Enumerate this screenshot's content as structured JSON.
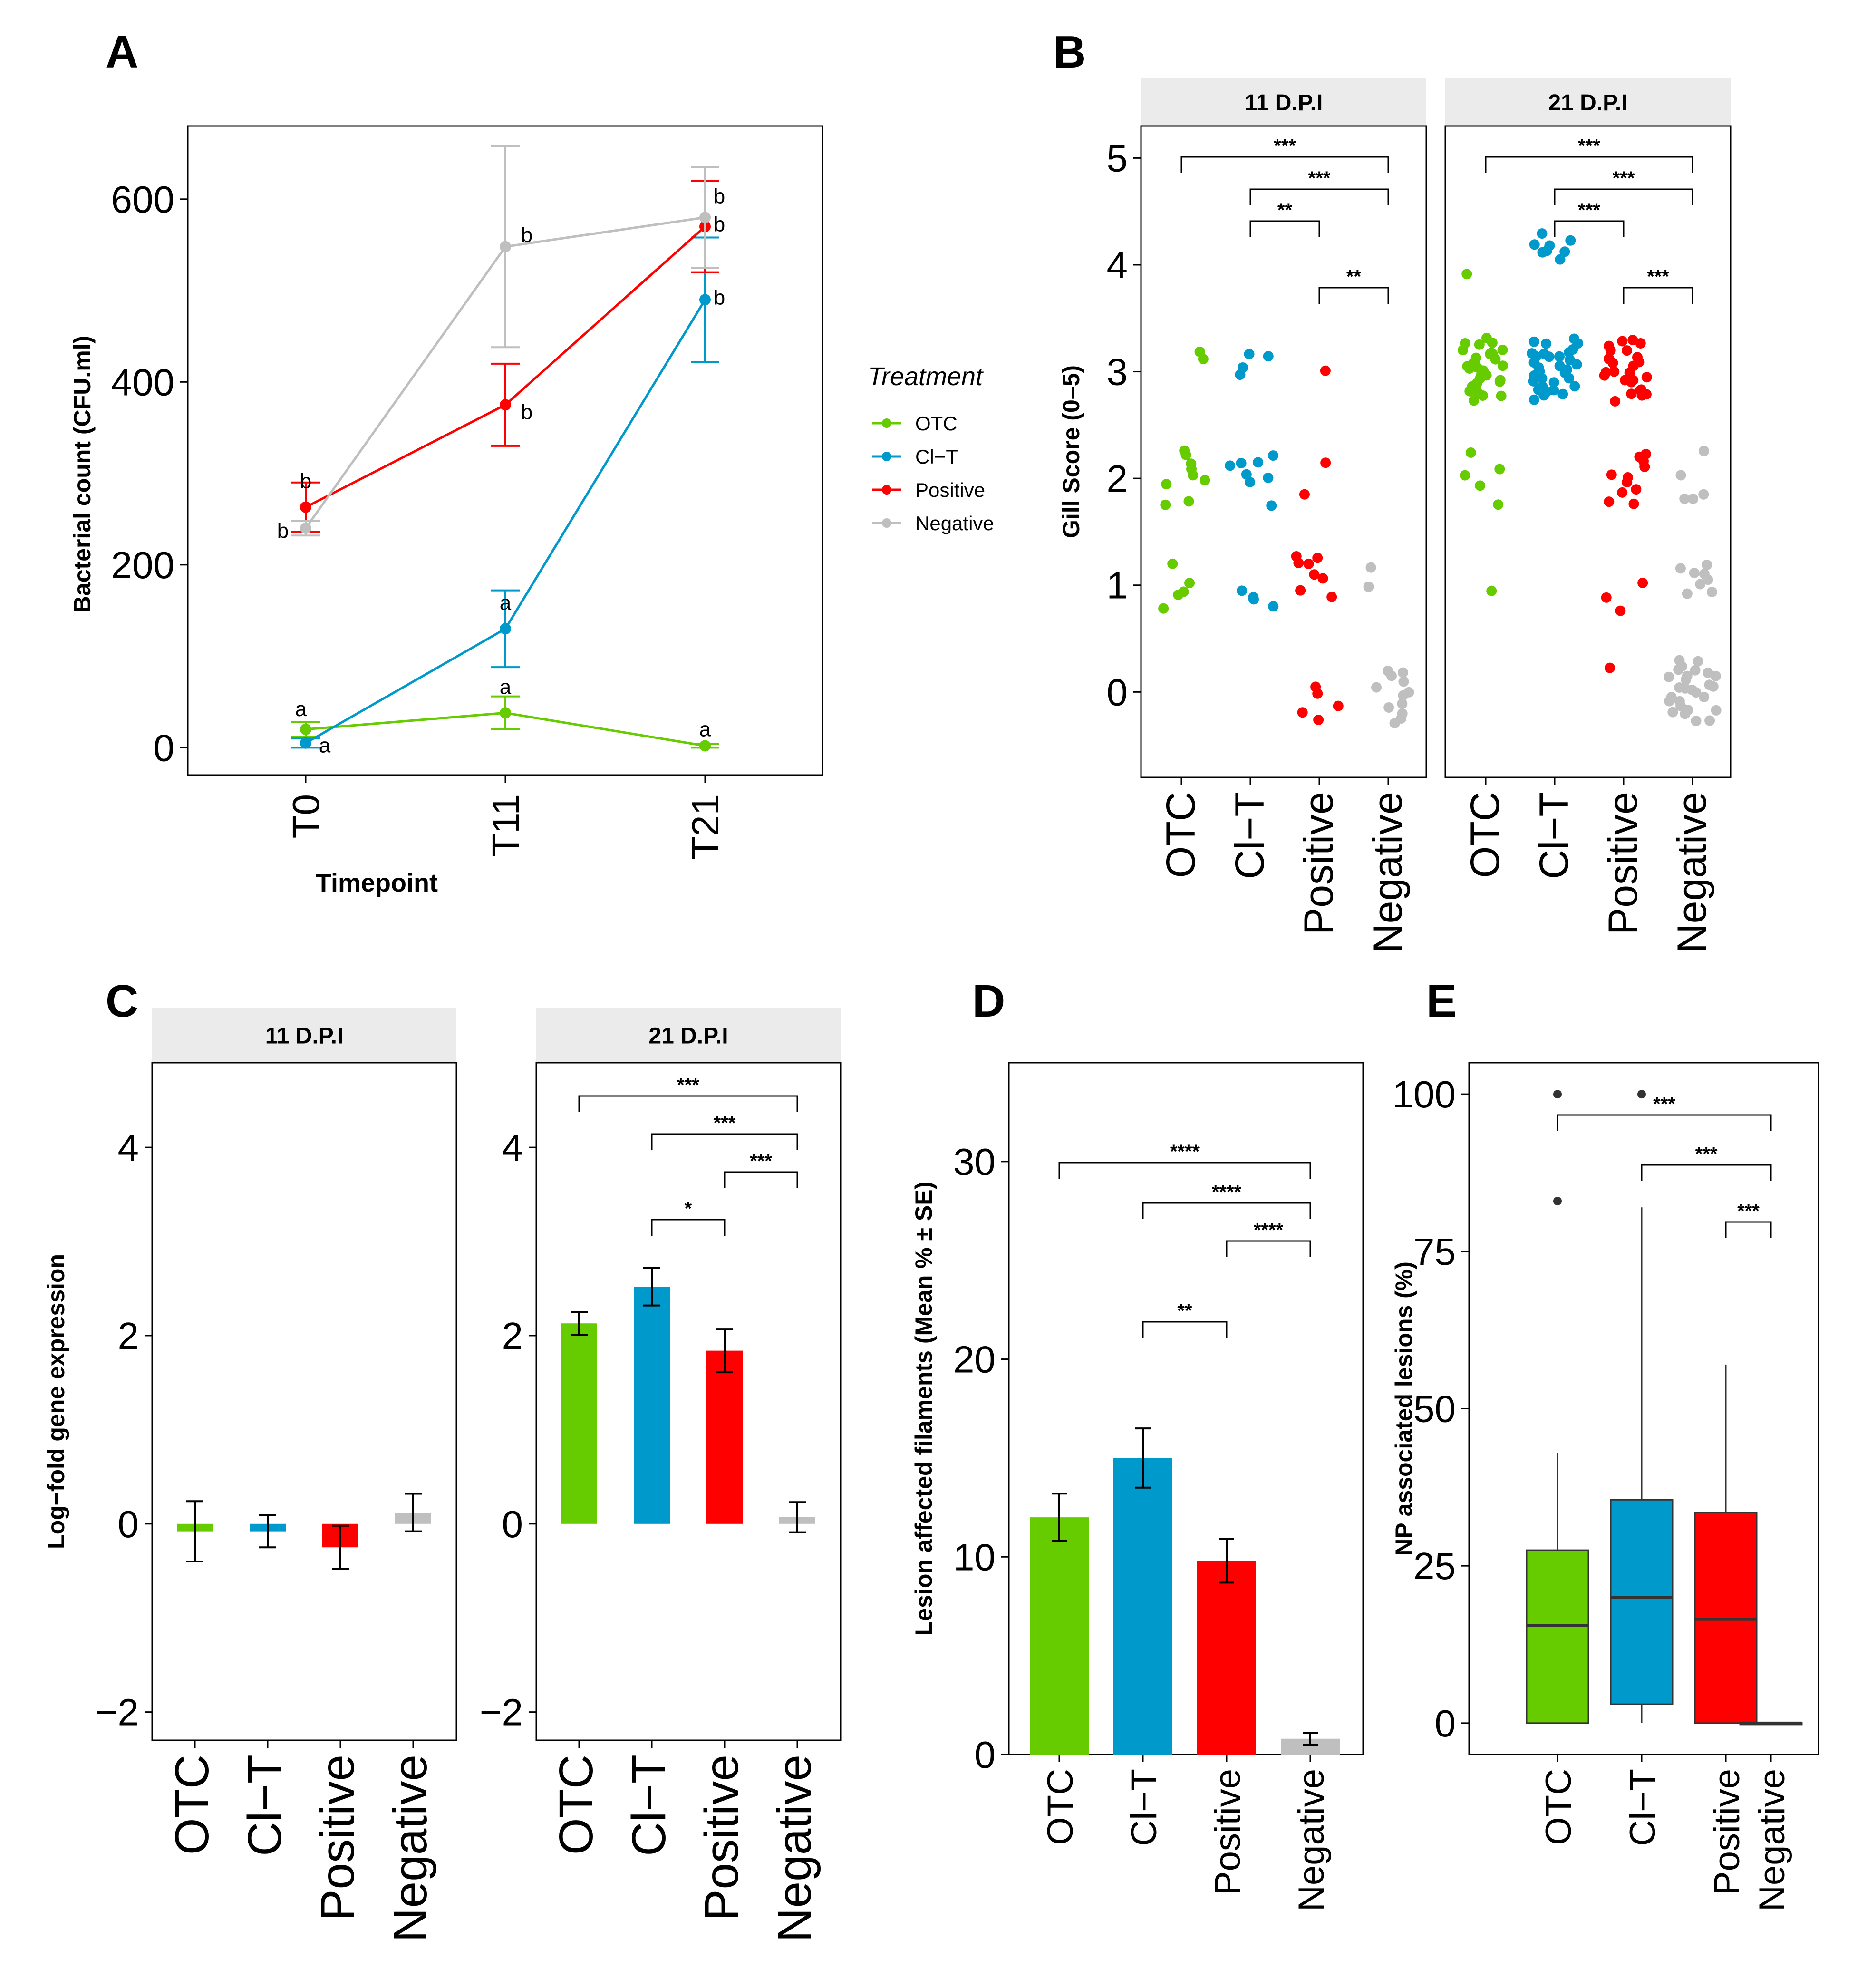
{
  "panels": {
    "A": "A",
    "B": "B",
    "C": "C",
    "D": "D",
    "E": "E"
  },
  "colors": {
    "OTC": "#66cc00",
    "CI-T": "#0099cc",
    "Positive": "#ff0000",
    "Negative": "#bfbfbf"
  },
  "chart_data": [
    {
      "panel": "A",
      "type": "line",
      "title": "",
      "xlabel": "Timepoint",
      "ylabel": "Bacterial count (CFU.ml)",
      "categories": [
        "T0",
        "T11",
        "T21"
      ],
      "ylim": [
        -30,
        680
      ],
      "yticks": [
        "0",
        "200",
        "400",
        "600"
      ],
      "legend": {
        "title": "Treatment",
        "position": "right",
        "entries": [
          "OTC",
          "Cl−T",
          "Positive",
          "Negative"
        ]
      },
      "series": [
        {
          "name": "OTC",
          "values": [
            20,
            38,
            2
          ],
          "err": [
            8,
            18,
            2
          ],
          "labels": [
            "a",
            "a",
            "a"
          ]
        },
        {
          "name": "CI-T",
          "values": [
            5,
            130,
            490
          ],
          "err": [
            5,
            42,
            68
          ],
          "labels": [
            "a",
            "a",
            "b"
          ]
        },
        {
          "name": "Positive",
          "values": [
            263,
            375,
            570
          ],
          "err": [
            27,
            45,
            50
          ],
          "labels": [
            "b",
            "b",
            "b"
          ]
        },
        {
          "name": "Negative",
          "values": [
            240,
            548,
            580
          ],
          "err": [
            8,
            110,
            55
          ],
          "labels": [
            "b",
            "b",
            "b"
          ]
        }
      ]
    },
    {
      "panel": "B",
      "type": "scatter",
      "ylabel": "Gill Score (0–5)",
      "categories": [
        "OTC",
        "Cl−T",
        "Positive",
        "Negative"
      ],
      "ylim": [
        -0.8,
        5.3
      ],
      "yticks": [
        "0",
        "1",
        "2",
        "3",
        "4",
        "5"
      ],
      "facets": [
        {
          "title": "11 D.P.I",
          "points": {
            "OTC": [
              3.2,
              3.13,
              2.27,
              2.2,
              2.15,
              2.08,
              2.05,
              2.0,
              1.93,
              1.8,
              1.75,
              1.2,
              1.0,
              0.95,
              0.92,
              0.8
            ],
            "CI-T": [
              3.15,
              3.13,
              3.05,
              2.95,
              2.2,
              2.17,
              2.15,
              2.1,
              2.05,
              2.0,
              1.95,
              1.75,
              0.95,
              0.9,
              0.88,
              0.8
            ],
            "Positive": [
              3.0,
              2.15,
              1.85,
              1.25,
              1.25,
              1.22,
              1.2,
              1.1,
              1.05,
              0.95,
              0.88,
              0.05,
              0.0,
              -0.15,
              -0.2,
              -0.25
            ],
            "Negative": [
              1.15,
              1.0,
              0.2,
              0.2,
              0.15,
              0.1,
              0.05,
              0.0,
              -0.05,
              -0.1,
              -0.15,
              -0.2,
              -0.25,
              -0.3
            ]
          },
          "comparisons": [
            {
              "from": 0,
              "to": 3,
              "label": "***"
            },
            {
              "from": 1,
              "to": 3,
              "label": "***"
            },
            {
              "from": 1,
              "to": 2,
              "label": "**"
            },
            {
              "from": 2,
              "to": 3,
              "label": "**"
            }
          ]
        },
        {
          "title": "21 D.P.I",
          "points": {
            "OTC": [
              3.9,
              3.3,
              3.28,
              3.26,
              3.24,
              3.22,
              3.2,
              3.18,
              3.16,
              3.14,
              3.12,
              3.1,
              3.08,
              3.06,
              3.04,
              3.02,
              3.0,
              2.98,
              2.96,
              2.94,
              2.92,
              2.9,
              2.88,
              2.86,
              2.84,
              2.82,
              2.8,
              2.78,
              2.76,
              2.74,
              3.05,
              3.15,
              2.95,
              2.25,
              2.1,
              2.05,
              1.95,
              1.75,
              0.95
            ],
            "CI-T": [
              4.3,
              4.22,
              4.2,
              4.18,
              4.15,
              4.12,
              4.1,
              4.05,
              3.3,
              3.28,
              3.26,
              3.24,
              3.22,
              3.2,
              3.18,
              3.16,
              3.14,
              3.12,
              3.1,
              3.08,
              3.06,
              3.04,
              3.02,
              3.0,
              2.98,
              2.96,
              2.94,
              2.92,
              2.9,
              2.88,
              2.86,
              2.84,
              2.82,
              2.8,
              2.78,
              2.76,
              2.74,
              3.05,
              3.15,
              2.95
            ],
            "Positive": [
              3.3,
              3.28,
              3.25,
              3.22,
              3.2,
              3.18,
              3.15,
              3.12,
              3.1,
              3.08,
              3.05,
              3.02,
              3.0,
              2.98,
              2.95,
              2.92,
              2.9,
              2.88,
              2.85,
              2.82,
              2.8,
              2.78,
              2.76,
              2.74,
              3.1,
              3.0,
              2.25,
              2.2,
              2.15,
              2.1,
              2.05,
              2.0,
              1.95,
              1.9,
              1.85,
              1.8,
              1.78,
              1.0,
              0.9,
              0.75,
              0.22
            ],
            "Negative": [
              2.25,
              2.05,
              1.85,
              1.82,
              1.8,
              1.2,
              1.15,
              1.12,
              1.1,
              1.05,
              1.0,
              0.95,
              0.92,
              0.3,
              0.28,
              0.25,
              0.22,
              0.2,
              0.18,
              0.15,
              0.12,
              0.1,
              0.08,
              0.05,
              0.02,
              0.0,
              -0.02,
              -0.05,
              -0.08,
              -0.1,
              -0.12,
              -0.15,
              -0.18,
              -0.2,
              -0.22,
              -0.25,
              -0.28,
              0.16,
              0.04,
              -0.06
            ]
          },
          "comparisons": [
            {
              "from": 0,
              "to": 3,
              "label": "***"
            },
            {
              "from": 1,
              "to": 3,
              "label": "***"
            },
            {
              "from": 1,
              "to": 2,
              "label": "***"
            },
            {
              "from": 2,
              "to": 3,
              "label": "***"
            }
          ]
        }
      ]
    },
    {
      "panel": "C",
      "type": "bar",
      "ylabel": "Log−fold gene expression",
      "categories": [
        "OTC",
        "Cl−T",
        "Positive",
        "Negative"
      ],
      "ylim": [
        -2.3,
        4.9
      ],
      "yticks": [
        "−2",
        "0",
        "2",
        "4"
      ],
      "facets": [
        {
          "title": "11 D.P.I",
          "values": [
            -0.08,
            -0.08,
            -0.25,
            0.12
          ],
          "err": [
            0.32,
            0.17,
            0.23,
            0.2
          ],
          "comparisons": []
        },
        {
          "title": "21 D.P.I",
          "values": [
            2.13,
            2.52,
            1.84,
            0.07
          ],
          "err": [
            0.12,
            0.2,
            0.23,
            0.16
          ],
          "comparisons": [
            {
              "from": 0,
              "to": 3,
              "label": "***"
            },
            {
              "from": 1,
              "to": 3,
              "label": "***"
            },
            {
              "from": 2,
              "to": 3,
              "label": "***"
            },
            {
              "from": 1,
              "to": 2,
              "label": "*"
            }
          ]
        }
      ]
    },
    {
      "panel": "D",
      "type": "bar",
      "ylabel": "Lesion affected filaments (Mean % ± SE)",
      "categories": [
        "OTC",
        "Cl−T",
        "Positive",
        "Negative"
      ],
      "ylim": [
        0,
        35
      ],
      "yticks": [
        "0",
        "10",
        "20",
        "30"
      ],
      "values": [
        12.0,
        15.0,
        9.8,
        0.8
      ],
      "err": [
        1.2,
        1.5,
        1.1,
        0.3
      ],
      "comparisons": [
        {
          "from": 0,
          "to": 3,
          "label": "****"
        },
        {
          "from": 1,
          "to": 3,
          "label": "****"
        },
        {
          "from": 2,
          "to": 3,
          "label": "****"
        },
        {
          "from": 1,
          "to": 2,
          "label": "**"
        }
      ]
    },
    {
      "panel": "E",
      "type": "box",
      "ylabel": "NP associated lesions (%)",
      "categories": [
        "OTC",
        "Cl−T",
        "Positive",
        "Negative"
      ],
      "ylim": [
        -5,
        105
      ],
      "yticks": [
        "0",
        "25",
        "50",
        "75",
        "100"
      ],
      "boxes": [
        {
          "min": 0,
          "q1": 0,
          "median": 15.5,
          "q3": 27.5,
          "max": 43,
          "outliers": [
            83,
            100
          ]
        },
        {
          "min": 0,
          "q1": 3,
          "median": 20,
          "q3": 35.5,
          "max": 82,
          "outliers": [
            100
          ]
        },
        {
          "min": 0,
          "q1": 0,
          "median": 16.5,
          "q3": 33.5,
          "max": 57,
          "outliers": []
        },
        {
          "min": 0,
          "q1": 0,
          "median": 0,
          "q3": 0,
          "max": 0,
          "outliers": []
        }
      ],
      "comparisons": [
        {
          "from": 0,
          "to": 3,
          "label": "***"
        },
        {
          "from": 1,
          "to": 3,
          "label": "***"
        },
        {
          "from": 2,
          "to": 3,
          "label": "***"
        }
      ]
    }
  ]
}
